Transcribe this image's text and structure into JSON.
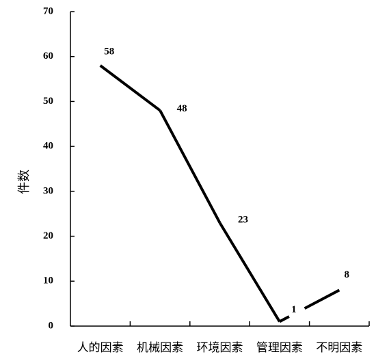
{
  "chart_data": {
    "type": "line",
    "title": "",
    "xlabel": "",
    "ylabel": "件数",
    "categories": [
      "人的因素",
      "机械因素",
      "环境因素",
      "管理因素",
      "不明因素"
    ],
    "series": [
      {
        "values": [
          58,
          48,
          23,
          1,
          8
        ]
      }
    ],
    "ylim": [
      0,
      70
    ],
    "yticks": [
      0,
      10,
      20,
      30,
      40,
      50,
      60,
      70
    ],
    "grid": false,
    "legend": "none",
    "line_color": "#000000"
  }
}
